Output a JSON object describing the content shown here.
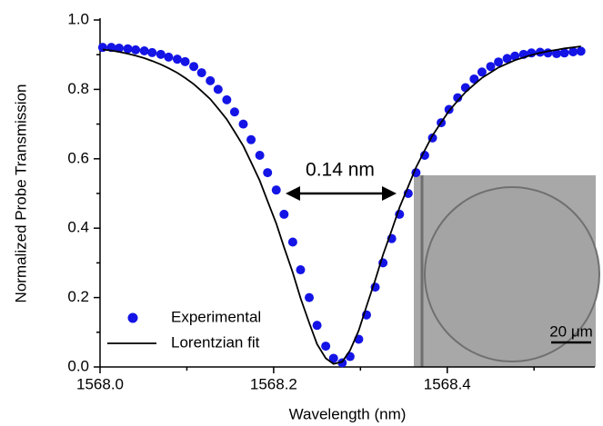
{
  "chart_data": {
    "type": "scatter",
    "x_label": "Wavelength (nm)",
    "y_label": "Normalized Probe Transmission",
    "xlim": [
      1568.0,
      1568.57
    ],
    "ylim": [
      0,
      1.0
    ],
    "xticks": [
      {
        "value": 1568.0,
        "label": "1568.0"
      },
      {
        "value": 1568.2,
        "label": "1568.2"
      },
      {
        "value": 1568.4,
        "label": "1568.4"
      }
    ],
    "xminorticks": [
      1568.1,
      1568.3,
      1568.5
    ],
    "yticks": [
      {
        "value": 0,
        "label": "0.0"
      },
      0.2,
      0.4,
      0.6,
      0.8,
      {
        "value": 1.0,
        "label": "1.0"
      }
    ],
    "yminorticks": [
      0.1,
      0.3,
      0.5,
      0.7,
      0.9
    ],
    "annotation": "0.14 nm",
    "inset_scale_label": "20 μm",
    "series": [
      {
        "name": "Experimental",
        "marker": "circle",
        "color": "#1414e6",
        "x": [
          1568.003,
          1568.013,
          1568.022,
          1568.032,
          1568.041,
          1568.051,
          1568.06,
          1568.07,
          1568.079,
          1568.089,
          1568.098,
          1568.108,
          1568.117,
          1568.127,
          1568.136,
          1568.146,
          1568.155,
          1568.165,
          1568.174,
          1568.184,
          1568.193,
          1568.203,
          1568.212,
          1568.222,
          1568.231,
          1568.241,
          1568.25,
          1568.26,
          1568.269,
          1568.279,
          1568.288,
          1568.298,
          1568.307,
          1568.317,
          1568.326,
          1568.336,
          1568.345,
          1568.355,
          1568.364,
          1568.374,
          1568.383,
          1568.393,
          1568.402,
          1568.412,
          1568.421,
          1568.431,
          1568.44,
          1568.45,
          1568.459,
          1568.469,
          1568.478,
          1568.488,
          1568.497,
          1568.507,
          1568.516,
          1568.526,
          1568.535,
          1568.545,
          1568.554
        ],
        "values": [
          0.921,
          0.921,
          0.919,
          0.917,
          0.914,
          0.911,
          0.906,
          0.901,
          0.893,
          0.887,
          0.88,
          0.866,
          0.848,
          0.825,
          0.8,
          0.77,
          0.735,
          0.7,
          0.655,
          0.61,
          0.56,
          0.51,
          0.44,
          0.36,
          0.28,
          0.2,
          0.12,
          0.06,
          0.025,
          0.012,
          0.03,
          0.08,
          0.15,
          0.23,
          0.3,
          0.37,
          0.44,
          0.5,
          0.56,
          0.61,
          0.66,
          0.704,
          0.742,
          0.776,
          0.805,
          0.83,
          0.85,
          0.866,
          0.879,
          0.889,
          0.896,
          0.901,
          0.905,
          0.907,
          0.905,
          0.903,
          0.905,
          0.908,
          0.91
        ]
      },
      {
        "name": "Lorentzian fit",
        "marker": "line",
        "color": "#000000",
        "x": [
          1568.003,
          1568.013,
          1568.022,
          1568.032,
          1568.041,
          1568.051,
          1568.06,
          1568.07,
          1568.079,
          1568.089,
          1568.098,
          1568.108,
          1568.117,
          1568.127,
          1568.136,
          1568.146,
          1568.155,
          1568.165,
          1568.174,
          1568.184,
          1568.193,
          1568.203,
          1568.212,
          1568.222,
          1568.231,
          1568.241,
          1568.25,
          1568.26,
          1568.269,
          1568.279,
          1568.288,
          1568.298,
          1568.307,
          1568.317,
          1568.326,
          1568.336,
          1568.345,
          1568.355,
          1568.364,
          1568.374,
          1568.383,
          1568.393,
          1568.402,
          1568.412,
          1568.421,
          1568.431,
          1568.44,
          1568.45,
          1568.459,
          1568.469,
          1568.478,
          1568.488,
          1568.497,
          1568.507,
          1568.516,
          1568.526,
          1568.535,
          1568.545,
          1568.554
        ],
        "values": [
          0.915,
          0.912,
          0.908,
          0.903,
          0.897,
          0.89,
          0.882,
          0.872,
          0.861,
          0.848,
          0.833,
          0.815,
          0.795,
          0.772,
          0.745,
          0.714,
          0.678,
          0.637,
          0.59,
          0.537,
          0.478,
          0.414,
          0.345,
          0.272,
          0.198,
          0.127,
          0.066,
          0.025,
          0.009,
          0.015,
          0.048,
          0.105,
          0.175,
          0.25,
          0.323,
          0.394,
          0.46,
          0.52,
          0.575,
          0.624,
          0.667,
          0.705,
          0.738,
          0.767,
          0.792,
          0.814,
          0.833,
          0.849,
          0.863,
          0.874,
          0.884,
          0.892,
          0.899,
          0.905,
          0.91,
          0.914,
          0.918,
          0.921,
          0.924
        ]
      }
    ]
  }
}
